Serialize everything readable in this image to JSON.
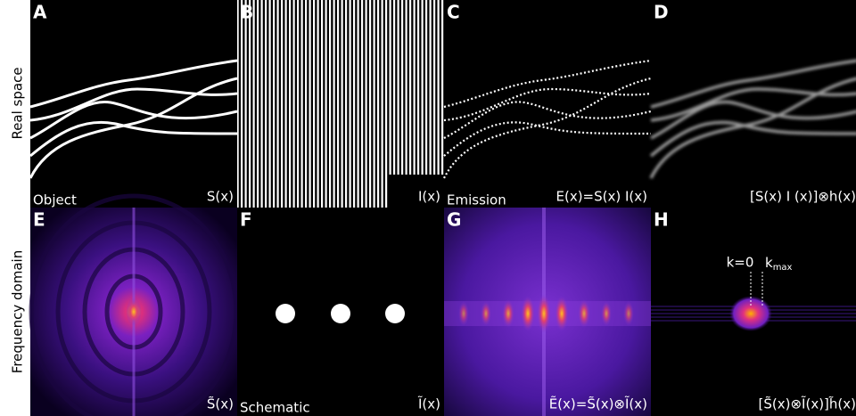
{
  "row_labels": [
    "Real space",
    "Frequency domain"
  ],
  "panels": [
    {
      "letter": "A",
      "left_label": "Object",
      "right_label": "S(x)"
    },
    {
      "letter": "B",
      "right_label": "I(x)"
    },
    {
      "letter": "C",
      "left_label": "Emission",
      "right_label": "E(x)=S(x) I(x)"
    },
    {
      "letter": "D",
      "right_label": "[S(x) I (x)]⊗h(x)"
    },
    {
      "letter": "E",
      "right_label": "S̃(x)"
    },
    {
      "letter": "F",
      "left_label": "Schematic",
      "right_label": "Ĩ(x)"
    },
    {
      "letter": "G",
      "right_label": "Ẽ(x)=S̃(x)⊗Ĩ(x)"
    },
    {
      "letter": "H",
      "right_label": "[S̃(x)⊗Ĩ(x)]h̃(x)",
      "annotations": [
        "k=0",
        {
          "base": "k",
          "sub": "max"
        }
      ]
    }
  ]
}
